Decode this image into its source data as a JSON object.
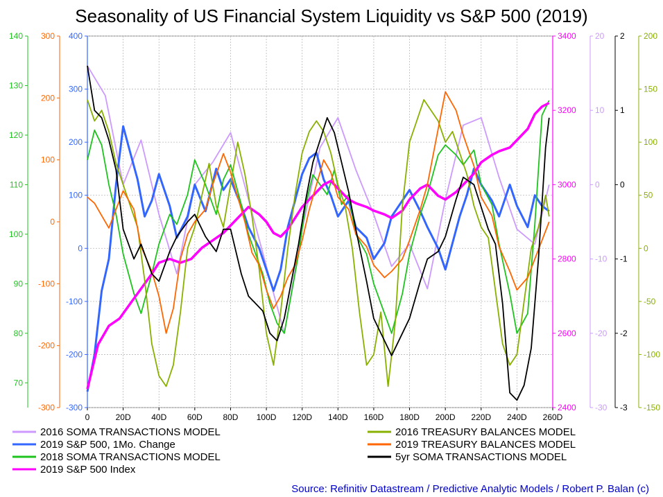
{
  "chart_data": {
    "type": "line",
    "title": "Seasonality of US Financial System Liquidity vs S&P 500 (2019)",
    "source": "Source: Refinitiv Datastream / Predictive Analytic Models / Robert P. Balan (c)",
    "x_axis": {
      "range": [
        0,
        260
      ],
      "tick_labels": [
        "0",
        "20D",
        "40D",
        "60D",
        "80D",
        "100D",
        "120D",
        "140D",
        "160D",
        "180D",
        "200D",
        "220D",
        "240D",
        "260D"
      ]
    },
    "axes": {
      "left_green": {
        "color": "#1ec31e",
        "range": [
          65,
          140
        ],
        "tick_labels": [
          "70",
          "80",
          "90",
          "100",
          "110",
          "120",
          "130",
          "140"
        ]
      },
      "left_orange": {
        "color": "#ff6600",
        "range": [
          -300,
          300
        ],
        "tick_labels": [
          "-300",
          "-200",
          "-100",
          "0",
          "100",
          "200",
          "300"
        ]
      },
      "left_blue": {
        "color": "#3366ff",
        "range": [
          -300,
          400
        ],
        "tick_labels": [
          "-300",
          "-200",
          "-100",
          "0",
          "100",
          "200",
          "300",
          "400"
        ]
      },
      "right_magenta": {
        "color": "#ff00ff",
        "range": [
          2400,
          3400
        ],
        "tick_labels": [
          "2400",
          "2600",
          "2800",
          "3000",
          "3200",
          "3400"
        ]
      },
      "right_lavender": {
        "color": "#cc99ff",
        "range": [
          -30,
          20
        ],
        "tick_labels": [
          "-30",
          "-20",
          "-10",
          "0",
          "10",
          "20"
        ]
      },
      "right_black": {
        "color": "#000000",
        "range": [
          -3,
          2
        ],
        "tick_labels": [
          "-3",
          "-2",
          "-1",
          "0",
          "1",
          "2"
        ]
      },
      "right_olive": {
        "color": "#88b000",
        "range": [
          -150,
          200
        ],
        "tick_labels": [
          "-150",
          "-100",
          "-50",
          "0",
          "50",
          "100",
          "150",
          "200"
        ]
      }
    },
    "series": [
      {
        "name": "2016 SOMA TRANSACTIONS MODEL",
        "color": "#cc99ff",
        "axis": "right_lavender",
        "x": [
          0,
          10,
          20,
          30,
          40,
          50,
          60,
          70,
          80,
          90,
          100,
          110,
          120,
          130,
          140,
          150,
          160,
          170,
          180,
          190,
          200,
          210,
          220,
          230,
          240,
          250,
          258
        ],
        "y": [
          16,
          12,
          0,
          6,
          -4,
          -12,
          0,
          3,
          7,
          -2,
          -11,
          -20,
          -6,
          5,
          9,
          2,
          -4,
          -11,
          -8,
          -14,
          -2,
          8,
          9,
          1,
          -6,
          -8,
          0
        ]
      },
      {
        "name": "2019 S&P 500, 1Mo. Change",
        "color": "#3366ff",
        "axis": "left_blue",
        "x": [
          0,
          4,
          8,
          12,
          16,
          20,
          24,
          28,
          32,
          36,
          40,
          46,
          50,
          56,
          60,
          66,
          72,
          76,
          80,
          86,
          90,
          96,
          100,
          104,
          108,
          112,
          116,
          120,
          124,
          128,
          132,
          136,
          140,
          146,
          150,
          156,
          160,
          166,
          170,
          176,
          180,
          186,
          190,
          196,
          200,
          204,
          208,
          212,
          216,
          220,
          226,
          230,
          236,
          240,
          246,
          250,
          254,
          258
        ],
        "y": [
          -270,
          -200,
          -80,
          -20,
          120,
          230,
          180,
          130,
          60,
          90,
          140,
          80,
          20,
          60,
          120,
          70,
          150,
          110,
          130,
          80,
          40,
          0,
          -40,
          -80,
          -40,
          40,
          90,
          140,
          170,
          180,
          130,
          100,
          60,
          90,
          40,
          20,
          -20,
          10,
          60,
          90,
          110,
          70,
          40,
          0,
          -40,
          10,
          60,
          100,
          150,
          120,
          90,
          60,
          120,
          80,
          40,
          100,
          80,
          70
        ]
      },
      {
        "name": "2018 SOMA TRANSACTIONS MODEL",
        "color": "#1ec31e",
        "axis": "left_green",
        "x": [
          0,
          4,
          8,
          12,
          16,
          20,
          26,
          30,
          36,
          40,
          46,
          50,
          56,
          60,
          66,
          72,
          76,
          80,
          86,
          90,
          94,
          98,
          102,
          106,
          110,
          114,
          118,
          122,
          126,
          130,
          134,
          138,
          142,
          146,
          150,
          156,
          160,
          166,
          170,
          176,
          180,
          186,
          190,
          196,
          200,
          206,
          210,
          216,
          220,
          226,
          230,
          236,
          240,
          246,
          250,
          254,
          258
        ],
        "y": [
          115,
          121,
          118,
          110,
          104,
          96,
          88,
          84,
          92,
          98,
          104,
          102,
          108,
          115,
          110,
          104,
          111,
          114,
          106,
          100,
          96,
          92,
          86,
          82,
          80,
          88,
          96,
          106,
          112,
          110,
          108,
          113,
          106,
          108,
          100,
          96,
          90,
          84,
          80,
          88,
          96,
          104,
          108,
          116,
          118,
          116,
          114,
          117,
          110,
          106,
          98,
          88,
          80,
          84,
          102,
          124,
          127
        ]
      },
      {
        "name": "2019 S&P 500 Index",
        "color": "#ff00ff",
        "axis": "right_magenta",
        "x": [
          0,
          6,
          12,
          18,
          24,
          30,
          36,
          40,
          46,
          52,
          58,
          64,
          70,
          76,
          82,
          86,
          90,
          96,
          100,
          104,
          108,
          112,
          116,
          120,
          124,
          128,
          132,
          136,
          140,
          146,
          150,
          156,
          160,
          166,
          170,
          176,
          180,
          186,
          190,
          196,
          200,
          206,
          210,
          216,
          220,
          226,
          230,
          236,
          240,
          246,
          250,
          254,
          258
        ],
        "y": [
          2450,
          2570,
          2620,
          2640,
          2680,
          2720,
          2760,
          2790,
          2800,
          2790,
          2800,
          2830,
          2850,
          2870,
          2900,
          2920,
          2940,
          2920,
          2900,
          2870,
          2860,
          2880,
          2910,
          2940,
          2960,
          2980,
          3000,
          3010,
          2990,
          2960,
          2950,
          2940,
          2930,
          2920,
          2910,
          2930,
          2960,
          2990,
          3000,
          2970,
          2960,
          2980,
          3000,
          3030,
          3060,
          3080,
          3090,
          3100,
          3120,
          3150,
          3190,
          3210,
          3220
        ]
      },
      {
        "name": "2016 TREASURY BALANCES MODEL",
        "color": "#88b000",
        "axis": "right_olive",
        "x": [
          0,
          4,
          8,
          12,
          16,
          20,
          24,
          28,
          32,
          36,
          40,
          44,
          48,
          52,
          56,
          60,
          64,
          68,
          72,
          76,
          80,
          84,
          88,
          92,
          96,
          100,
          104,
          108,
          112,
          116,
          120,
          124,
          128,
          132,
          136,
          140,
          144,
          148,
          152,
          156,
          160,
          164,
          168,
          172,
          176,
          180,
          184,
          188,
          192,
          196,
          200,
          204,
          208,
          212,
          216,
          220,
          224,
          228,
          232,
          236,
          240,
          244,
          248,
          252,
          256,
          258
        ],
        "y": [
          140,
          120,
          130,
          110,
          80,
          60,
          40,
          20,
          -30,
          -90,
          -120,
          -130,
          -110,
          -60,
          0,
          20,
          50,
          80,
          40,
          20,
          60,
          100,
          70,
          30,
          -20,
          -80,
          -110,
          -60,
          0,
          50,
          90,
          110,
          120,
          110,
          90,
          60,
          40,
          0,
          -60,
          -110,
          -100,
          -60,
          -130,
          -70,
          40,
          100,
          120,
          140,
          130,
          120,
          100,
          110,
          90,
          70,
          40,
          20,
          10,
          -40,
          -90,
          -110,
          -100,
          -50,
          0,
          20,
          50,
          30
        ]
      },
      {
        "name": "2019 TREASURY BALANCES MODEL",
        "color": "#ff6600",
        "axis": "left_orange",
        "x": [
          0,
          4,
          8,
          12,
          16,
          20,
          26,
          30,
          36,
          40,
          44,
          48,
          52,
          56,
          60,
          66,
          70,
          76,
          80,
          84,
          88,
          92,
          96,
          100,
          104,
          108,
          112,
          116,
          120,
          124,
          128,
          132,
          136,
          140,
          146,
          150,
          156,
          160,
          166,
          170,
          176,
          180,
          186,
          190,
          196,
          200,
          206,
          210,
          216,
          220,
          226,
          230,
          236,
          240,
          246,
          250,
          254,
          258
        ],
        "y": [
          40,
          30,
          10,
          -10,
          20,
          50,
          20,
          -40,
          -80,
          -120,
          -180,
          -140,
          -60,
          -20,
          0,
          20,
          60,
          110,
          80,
          40,
          0,
          -50,
          -70,
          -110,
          -140,
          -120,
          -90,
          -70,
          -30,
          20,
          60,
          100,
          80,
          40,
          20,
          -20,
          -40,
          -70,
          -90,
          -80,
          -60,
          -30,
          20,
          60,
          150,
          210,
          180,
          140,
          90,
          40,
          10,
          -40,
          -80,
          -110,
          -90,
          -60,
          -30,
          0
        ]
      },
      {
        "name": "5yr SOMA TRANSACTIONS MODEL",
        "color": "#000000",
        "axis": "right_black",
        "x": [
          0,
          4,
          8,
          12,
          16,
          20,
          26,
          30,
          36,
          40,
          46,
          50,
          56,
          60,
          66,
          72,
          76,
          80,
          86,
          90,
          94,
          98,
          102,
          106,
          110,
          114,
          118,
          122,
          126,
          130,
          134,
          138,
          142,
          146,
          150,
          156,
          160,
          166,
          170,
          176,
          180,
          186,
          190,
          196,
          200,
          206,
          210,
          216,
          220,
          224,
          228,
          232,
          236,
          240,
          244,
          248,
          252,
          256,
          258
        ],
        "y": [
          1.6,
          1.0,
          0.9,
          0.6,
          0.2,
          -0.6,
          -1.0,
          -0.8,
          -1.2,
          -1.3,
          -0.9,
          -0.7,
          -0.5,
          -0.4,
          -0.7,
          -0.9,
          -0.6,
          -0.6,
          -1.2,
          -1.5,
          -1.6,
          -1.7,
          -2.0,
          -2.1,
          -1.8,
          -1.3,
          -0.8,
          -0.2,
          0.3,
          0.6,
          0.9,
          0.7,
          0.3,
          -0.1,
          -0.6,
          -1.3,
          -1.8,
          -2.1,
          -2.3,
          -2.0,
          -1.8,
          -1.3,
          -1.0,
          -0.9,
          -0.7,
          -0.2,
          0.1,
          0.0,
          -0.3,
          -0.6,
          -0.8,
          -1.6,
          -2.8,
          -2.9,
          -2.7,
          -2.2,
          -1.0,
          0.5,
          0.9
        ]
      }
    ],
    "legend_placement": "bottom",
    "grid": true
  }
}
